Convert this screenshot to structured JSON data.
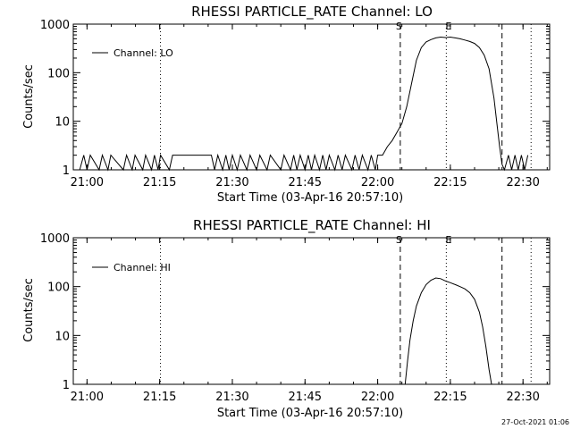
{
  "footer": {
    "timestamp": "27-Oct-2021 01:06"
  },
  "chart_data": [
    {
      "type": "line",
      "title": "RHESSI PARTICLE_RATE Channel: LO",
      "xlabel": "Start Time (03-Apr-16 20:57:10)",
      "ylabel": "Counts/sec",
      "yscale": "log",
      "ylim": [
        1,
        1000
      ],
      "xlim": [
        "20:57:10",
        "22:35:30"
      ],
      "x_ticks": [
        "21:00",
        "21:15",
        "21:30",
        "21:45",
        "22:00",
        "22:15",
        "22:30"
      ],
      "y_ticks": [
        "1",
        "10",
        "100",
        "1000"
      ],
      "legend": {
        "label": "Channel: LO",
        "position": "top-left"
      },
      "markers": [
        {
          "label": "S",
          "time": "22:04:40",
          "style": "dashed"
        },
        {
          "label": "E",
          "time": "22:14:10",
          "style": "dotted"
        },
        {
          "label": "",
          "time": "22:25:40",
          "style": "dashed"
        },
        {
          "label": "",
          "time": "21:15:10",
          "style": "dotted"
        },
        {
          "label": "",
          "time": "22:31:40",
          "style": "dotted"
        }
      ],
      "series": [
        {
          "x": [
            "20:58:30",
            "20:59:20",
            "21:00:00",
            "21:00:40",
            "21:02:30",
            "21:03:10",
            "21:04:20",
            "21:04:55",
            "21:07:30",
            "21:08:10",
            "21:09:20",
            "21:09:55",
            "21:11:30",
            "21:12:05",
            "21:13:20",
            "21:13:55",
            "21:14:40",
            "21:15:10",
            "21:17:00",
            "21:17:40",
            "21:18:20",
            "21:19:00",
            "21:25:00",
            "21:25:40",
            "21:26:20",
            "21:27:00",
            "21:28:00",
            "21:28:40",
            "21:29:20",
            "21:30:00",
            "21:31:00",
            "21:31:40",
            "21:33:00",
            "21:33:40",
            "21:35:00",
            "21:35:40",
            "21:37:10",
            "21:37:50",
            "21:40:00",
            "21:40:40",
            "21:42:00",
            "21:42:40",
            "21:43:20",
            "21:44:00",
            "21:45:00",
            "21:45:40",
            "21:46:20",
            "21:47:00",
            "21:48:00",
            "21:48:40",
            "21:49:20",
            "21:50:00",
            "21:51:10",
            "21:51:50",
            "21:52:40",
            "21:53:20",
            "21:54:40",
            "21:55:20",
            "21:56:10",
            "21:56:50",
            "21:58:00",
            "21:58:40",
            "21:59:30",
            "22:00:00",
            "22:01:00",
            "22:02:00",
            "22:03:00",
            "22:04:00",
            "22:05:00",
            "22:06:00",
            "22:07:00",
            "22:08:00",
            "22:09:00",
            "22:10:00",
            "22:11:00",
            "22:12:00",
            "22:13:00",
            "22:14:00",
            "22:15:00",
            "22:16:00",
            "22:17:00",
            "22:18:00",
            "22:19:00",
            "22:20:00",
            "22:21:00",
            "22:22:00",
            "22:23:00",
            "22:24:00",
            "22:24:40",
            "22:25:10",
            "22:25:40",
            "22:26:10",
            "22:27:00",
            "22:27:40",
            "22:28:20",
            "22:29:00",
            "22:29:40",
            "22:30:20",
            "22:31:00"
          ],
          "y": [
            1,
            2,
            1,
            2,
            1,
            2,
            1,
            2,
            1,
            2,
            1,
            2,
            1,
            2,
            1,
            2,
            1,
            2,
            1,
            2,
            2,
            2,
            2,
            2,
            1,
            2,
            1,
            2,
            1,
            2,
            1,
            2,
            1,
            2,
            1,
            2,
            1,
            2,
            1,
            2,
            1,
            2,
            1,
            2,
            1,
            2,
            1,
            2,
            1,
            2,
            1,
            2,
            1,
            2,
            1,
            2,
            1,
            2,
            1,
            2,
            1,
            2,
            1,
            2,
            2,
            3,
            4,
            6,
            9,
            20,
            60,
            180,
            330,
            430,
            480,
            520,
            540,
            530,
            540,
            520,
            500,
            470,
            440,
            400,
            330,
            230,
            120,
            30,
            8,
            3,
            1.3,
            1,
            2,
            1,
            2,
            1,
            2,
            1,
            2
          ]
        }
      ]
    },
    {
      "type": "line",
      "title": "RHESSI PARTICLE_RATE Channel: HI",
      "xlabel": "Start Time (03-Apr-16 20:57:10)",
      "ylabel": "Counts/sec",
      "yscale": "log",
      "ylim": [
        1,
        1000
      ],
      "xlim": [
        "20:57:10",
        "22:35:30"
      ],
      "x_ticks": [
        "21:00",
        "21:15",
        "21:30",
        "21:45",
        "22:00",
        "22:15",
        "22:30"
      ],
      "y_ticks": [
        "1",
        "10",
        "100",
        "1000"
      ],
      "legend": {
        "label": "Channel: HI",
        "position": "top-left"
      },
      "markers": [
        {
          "label": "S",
          "time": "22:04:40",
          "style": "dashed"
        },
        {
          "label": "E",
          "time": "22:14:10",
          "style": "dotted"
        },
        {
          "label": "",
          "time": "22:25:40",
          "style": "dashed"
        },
        {
          "label": "",
          "time": "21:15:10",
          "style": "dotted"
        },
        {
          "label": "",
          "time": "22:31:40",
          "style": "dotted"
        }
      ],
      "series": [
        {
          "x": [
            "22:05:40",
            "22:06:10",
            "22:06:40",
            "22:07:20",
            "22:08:00",
            "22:09:00",
            "22:10:00",
            "22:11:00",
            "22:12:00",
            "22:13:00",
            "22:14:00",
            "22:15:00",
            "22:16:00",
            "22:17:00",
            "22:18:00",
            "22:19:00",
            "22:20:00",
            "22:21:00",
            "22:21:40",
            "22:22:20",
            "22:23:00",
            "22:23:30"
          ],
          "y": [
            1,
            3,
            8,
            20,
            40,
            75,
            110,
            135,
            150,
            145,
            130,
            120,
            110,
            100,
            90,
            75,
            55,
            30,
            15,
            6,
            2,
            1
          ]
        }
      ]
    }
  ]
}
